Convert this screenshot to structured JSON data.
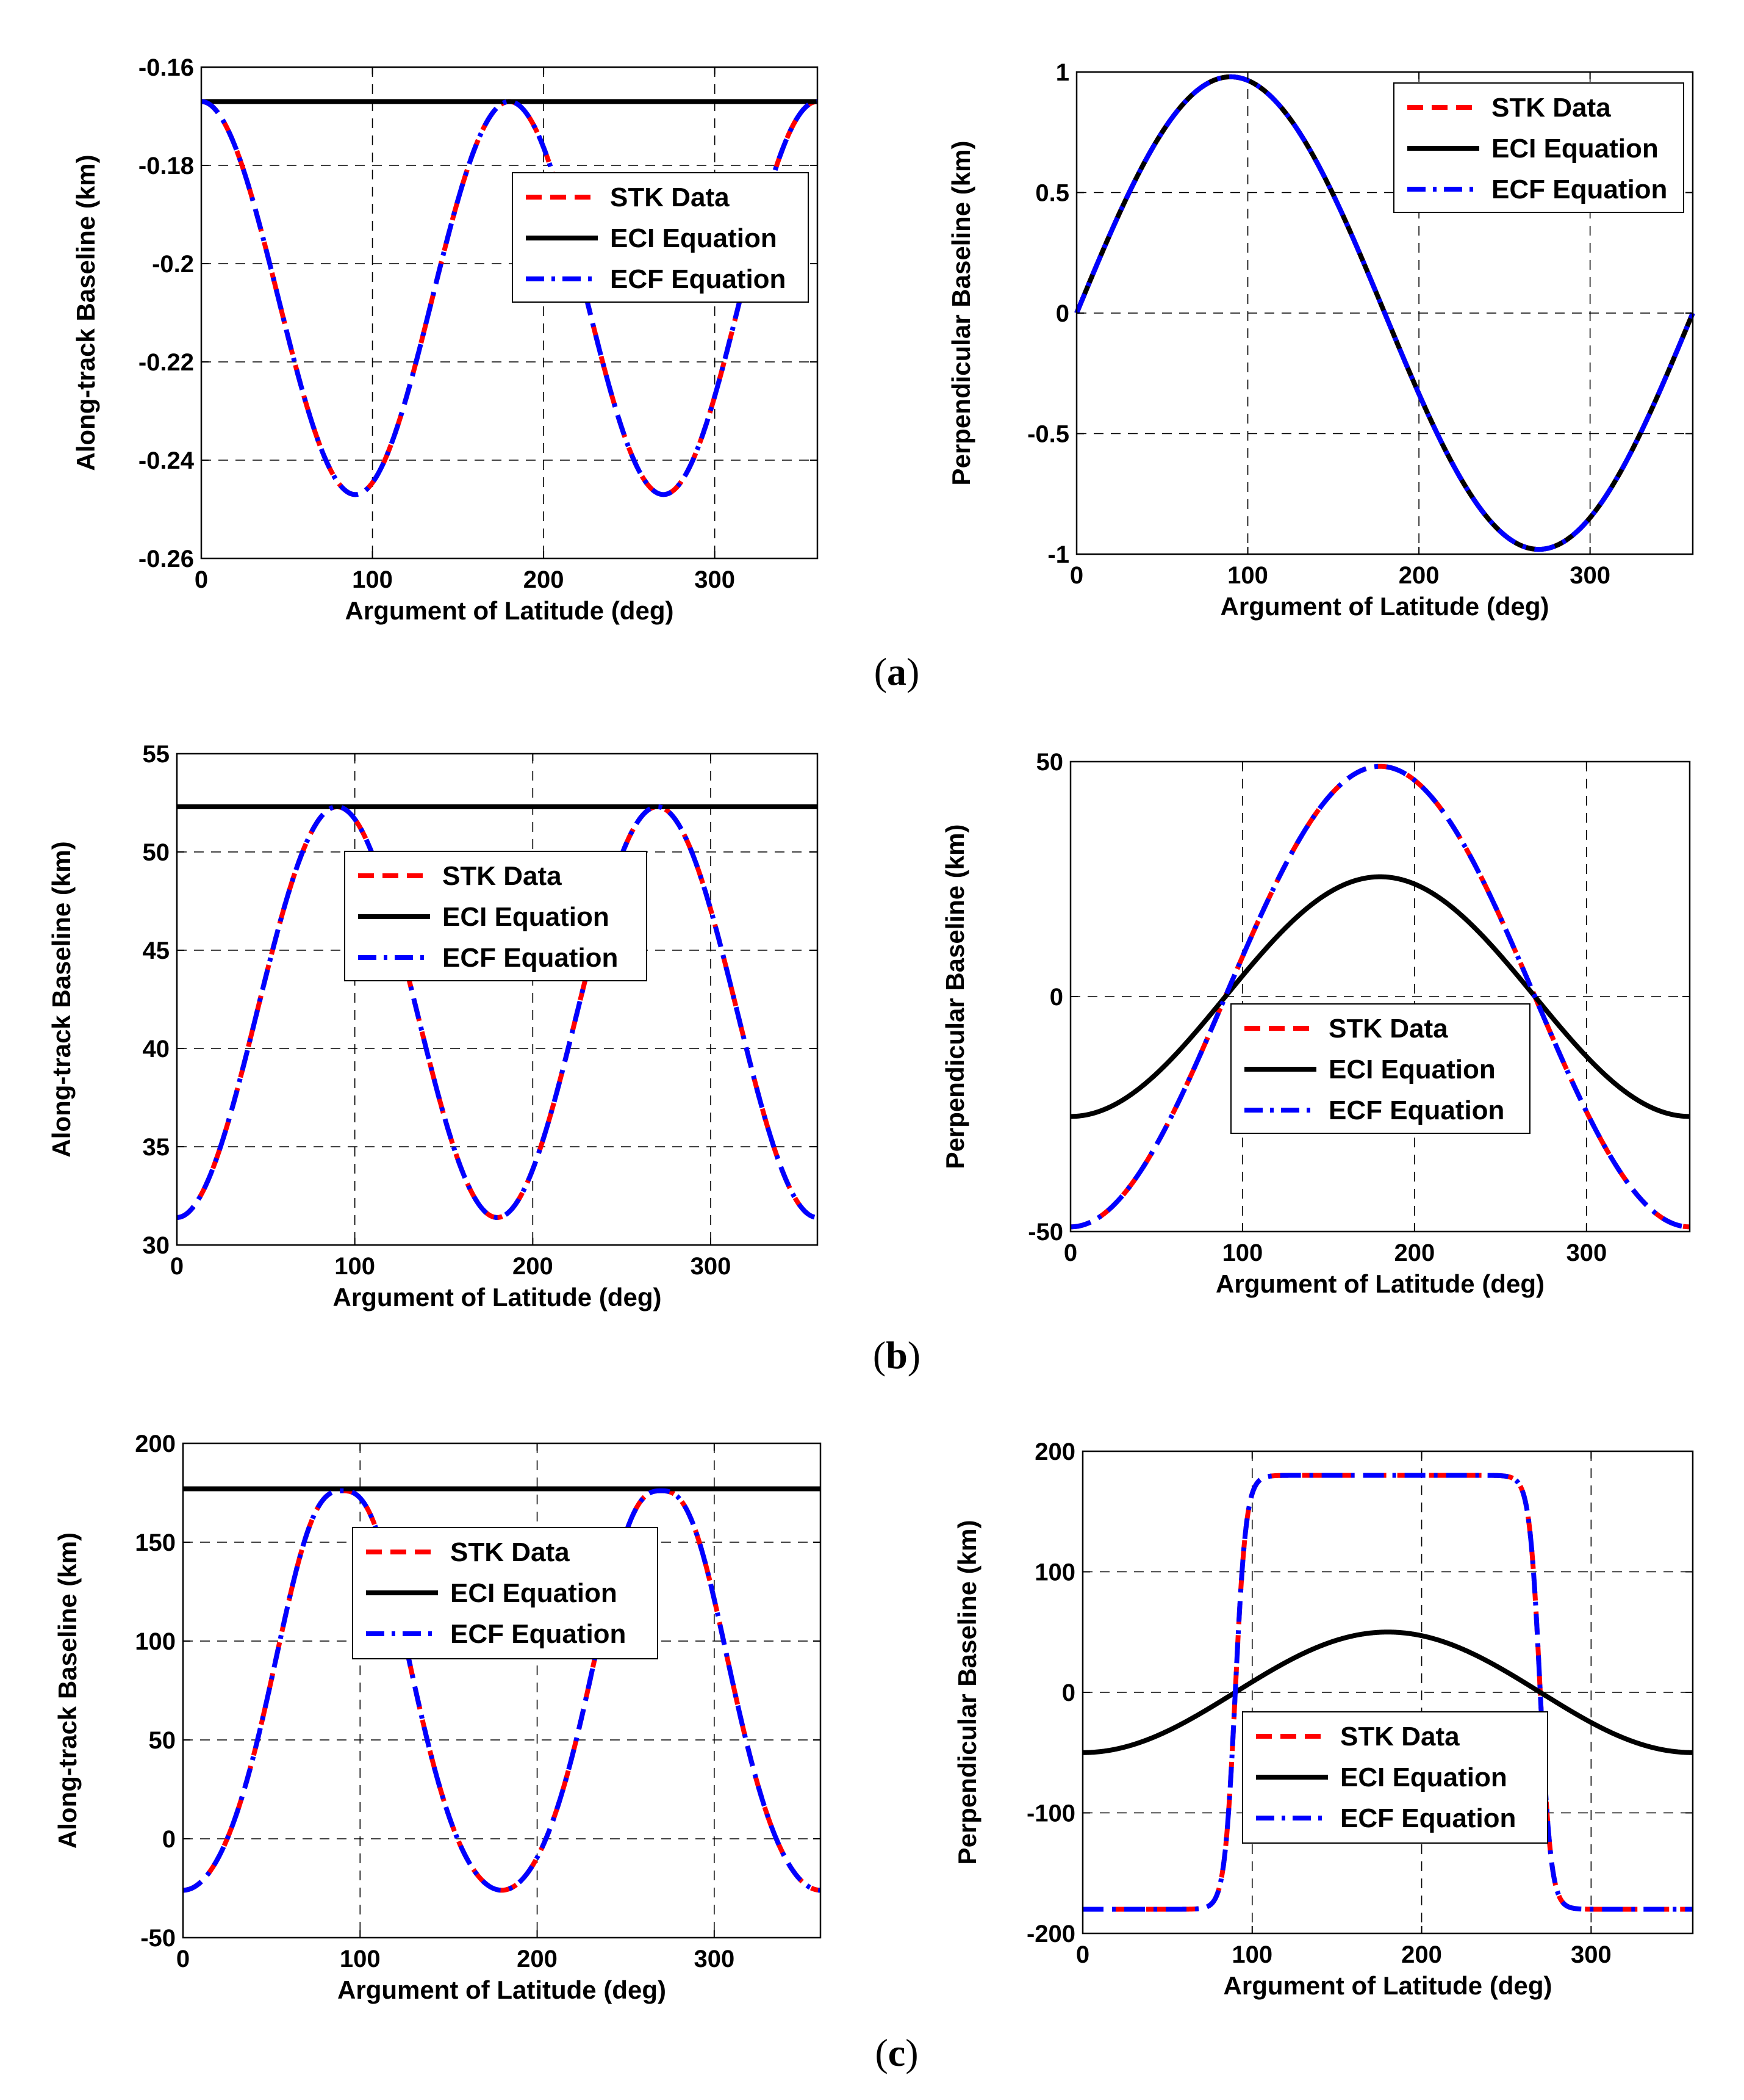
{
  "colors": {
    "stk": "#ff0000",
    "eci": "#000000",
    "ecf": "#0000ff",
    "grid": "#000000",
    "frame": "#000000"
  },
  "captions": [
    {
      "open": "(",
      "letter": "a",
      "close": ")"
    },
    {
      "open": "(",
      "letter": "b",
      "close": ")"
    },
    {
      "open": "(",
      "letter": "c",
      "close": ")"
    }
  ],
  "chart_data": [
    {
      "type": "line",
      "id": "a-left",
      "xlabel": "Argument of Latitude (deg)",
      "ylabel": "Along-track Baseline (km)",
      "xlim": [
        0,
        360
      ],
      "ylim": [
        -0.26,
        -0.16
      ],
      "xticks": [
        0,
        100,
        200,
        300
      ],
      "yticks": [
        -0.26,
        -0.24,
        -0.22,
        -0.2,
        -0.18,
        -0.16
      ],
      "ytick_labels": [
        "-0.26",
        "-0.24",
        "-0.22",
        "-0.2",
        "-0.18",
        "-0.16"
      ],
      "grid": true,
      "legend_position": "upper-right-center",
      "legend": [
        "STK Data",
        "ECI Equation",
        "ECF Equation"
      ],
      "series": [
        {
          "name": "STK Data",
          "style": "dashed",
          "model": {
            "kind": "cos2",
            "offset": -0.207,
            "amp": 0.04
          }
        },
        {
          "name": "ECI Equation",
          "style": "solid",
          "model": {
            "kind": "const",
            "value": -0.167
          }
        },
        {
          "name": "ECF Equation",
          "style": "dashdot",
          "model": {
            "kind": "cos2",
            "offset": -0.207,
            "amp": 0.04
          }
        }
      ]
    },
    {
      "type": "line",
      "id": "a-right",
      "xlabel": "Argument of Latitude (deg)",
      "ylabel": "Perpendicular Baseline (km)",
      "xlim": [
        0,
        360
      ],
      "ylim": [
        -1,
        1
      ],
      "xticks": [
        0,
        100,
        200,
        300
      ],
      "yticks": [
        -1,
        -0.5,
        0,
        0.5,
        1
      ],
      "ytick_labels": [
        "-1",
        "-0.5",
        "0",
        "0.5",
        "1"
      ],
      "grid": true,
      "legend_position": "top-right",
      "legend": [
        "STK Data",
        "ECI Equation",
        "ECF Equation"
      ],
      "series": [
        {
          "name": "STK Data",
          "style": "dashed",
          "model": {
            "kind": "sin",
            "amp": 0.98
          }
        },
        {
          "name": "ECI Equation",
          "style": "solid",
          "model": {
            "kind": "sin",
            "amp": 0.98
          }
        },
        {
          "name": "ECF Equation",
          "style": "dashdot",
          "model": {
            "kind": "sin",
            "amp": 0.98
          }
        }
      ]
    },
    {
      "type": "line",
      "id": "b-left",
      "xlabel": "Argument of Latitude (deg)",
      "ylabel": "Along-track Baseline (km)",
      "xlim": [
        0,
        360
      ],
      "ylim": [
        30,
        55
      ],
      "xticks": [
        0,
        100,
        200,
        300
      ],
      "yticks": [
        30,
        35,
        40,
        45,
        50,
        55
      ],
      "ytick_labels": [
        "30",
        "35",
        "40",
        "45",
        "50",
        "55"
      ],
      "grid": true,
      "legend_position": "top-center",
      "legend": [
        "STK Data",
        "ECI Equation",
        "ECF Equation"
      ],
      "series": [
        {
          "name": "STK Data",
          "style": "dashed",
          "model": {
            "kind": "negcos2",
            "offset": 41.85,
            "amp": 10.45
          }
        },
        {
          "name": "ECI Equation",
          "style": "solid",
          "model": {
            "kind": "const",
            "value": 52.3
          }
        },
        {
          "name": "ECF Equation",
          "style": "dashdot",
          "model": {
            "kind": "negcos2",
            "offset": 41.85,
            "amp": 10.45
          }
        }
      ]
    },
    {
      "type": "line",
      "id": "b-right",
      "xlabel": "Argument of Latitude (deg)",
      "ylabel": "Perpendicular Baseline (km)",
      "xlim": [
        0,
        360
      ],
      "ylim": [
        -50,
        50
      ],
      "xticks": [
        0,
        100,
        200,
        300
      ],
      "yticks": [
        -50,
        0,
        50
      ],
      "ytick_labels": [
        "-50",
        "0",
        "50"
      ],
      "grid": true,
      "legend_position": "center",
      "legend": [
        "STK Data",
        "ECI Equation",
        "ECF Equation"
      ],
      "series": [
        {
          "name": "STK Data",
          "style": "dashed",
          "model": {
            "kind": "negcos",
            "amp": 49
          }
        },
        {
          "name": "ECI Equation",
          "style": "solid",
          "model": {
            "kind": "negcos",
            "amp": 25.5
          }
        },
        {
          "name": "ECF Equation",
          "style": "dashdot",
          "model": {
            "kind": "negcos",
            "amp": 49
          }
        }
      ]
    },
    {
      "type": "line",
      "id": "c-left",
      "xlabel": "Argument of Latitude (deg)",
      "ylabel": "Along-track Baseline (km)",
      "xlim": [
        0,
        360
      ],
      "ylim": [
        -50,
        200
      ],
      "xticks": [
        0,
        100,
        200,
        300
      ],
      "yticks": [
        -50,
        0,
        50,
        100,
        150,
        200
      ],
      "ytick_labels": [
        "-50",
        "0",
        "50",
        "100",
        "150",
        "200"
      ],
      "grid": true,
      "legend_position": "center",
      "legend": [
        "STK Data",
        "ECI Equation",
        "ECF Equation"
      ],
      "series": [
        {
          "name": "STK Data",
          "style": "dashed",
          "model": {
            "kind": "peak",
            "base": -26,
            "amp": 202,
            "k": 2.7
          }
        },
        {
          "name": "ECI Equation",
          "style": "solid",
          "model": {
            "kind": "const",
            "value": 177
          }
        },
        {
          "name": "ECF Equation",
          "style": "dashdot",
          "model": {
            "kind": "peak",
            "base": -26,
            "amp": 202,
            "k": 2.7
          }
        }
      ]
    },
    {
      "type": "line",
      "id": "c-right",
      "xlabel": "Argument of Latitude (deg)",
      "ylabel": "Perpendicular Baseline (km)",
      "xlim": [
        0,
        360
      ],
      "ylim": [
        -200,
        200
      ],
      "xticks": [
        0,
        100,
        200,
        300
      ],
      "yticks": [
        -200,
        -100,
        0,
        100,
        200
      ],
      "ytick_labels": [
        "-200",
        "-100",
        "0",
        "100",
        "200"
      ],
      "grid": true,
      "legend_position": "lower-center",
      "legend": [
        "STK Data",
        "ECI Equation",
        "ECF Equation"
      ],
      "series": [
        {
          "name": "STK Data",
          "style": "dashed",
          "model": {
            "kind": "plateau",
            "amp": 180,
            "k": 9
          }
        },
        {
          "name": "ECI Equation",
          "style": "solid",
          "model": {
            "kind": "negcos",
            "amp": 50
          }
        },
        {
          "name": "ECF Equation",
          "style": "dashdot",
          "model": {
            "kind": "plateau",
            "amp": 180,
            "k": 9
          }
        }
      ]
    }
  ]
}
